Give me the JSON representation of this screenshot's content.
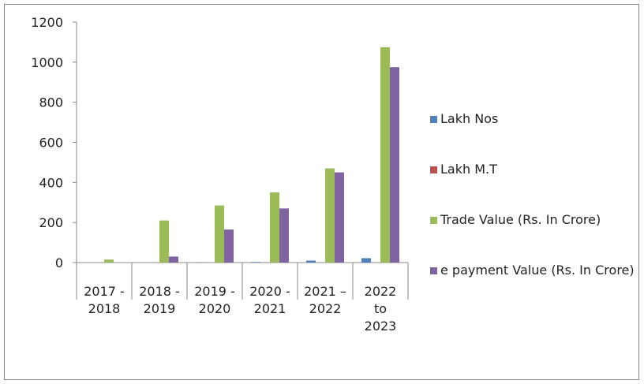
{
  "chart_data": {
    "type": "bar",
    "categories": [
      [
        "2017 -",
        "2018"
      ],
      [
        "2018 -",
        "2019"
      ],
      [
        "2019 -",
        "2020"
      ],
      [
        "2020 -",
        "2021"
      ],
      [
        "2021 –",
        "2022"
      ],
      [
        "2022",
        "to",
        "2023"
      ]
    ],
    "series": [
      {
        "name": "Lakh Nos",
        "color": "#4f81bd",
        "values": [
          0,
          0,
          1,
          3,
          10,
          22
        ]
      },
      {
        "name": "Lakh M.T",
        "color": "#c0504d",
        "values": [
          0,
          0,
          0,
          0,
          0,
          0
        ]
      },
      {
        "name": "Trade Value (Rs. In Crore)",
        "color": "#9bbb59",
        "values": [
          15,
          210,
          285,
          350,
          470,
          1075
        ]
      },
      {
        "name": "e payment Value (Rs. In Crore)",
        "color": "#8064a2",
        "values": [
          0,
          30,
          165,
          270,
          450,
          975
        ]
      }
    ],
    "ylim": [
      0,
      1200
    ],
    "yticks": [
      0,
      200,
      400,
      600,
      800,
      1000,
      1200
    ],
    "grid": false
  }
}
